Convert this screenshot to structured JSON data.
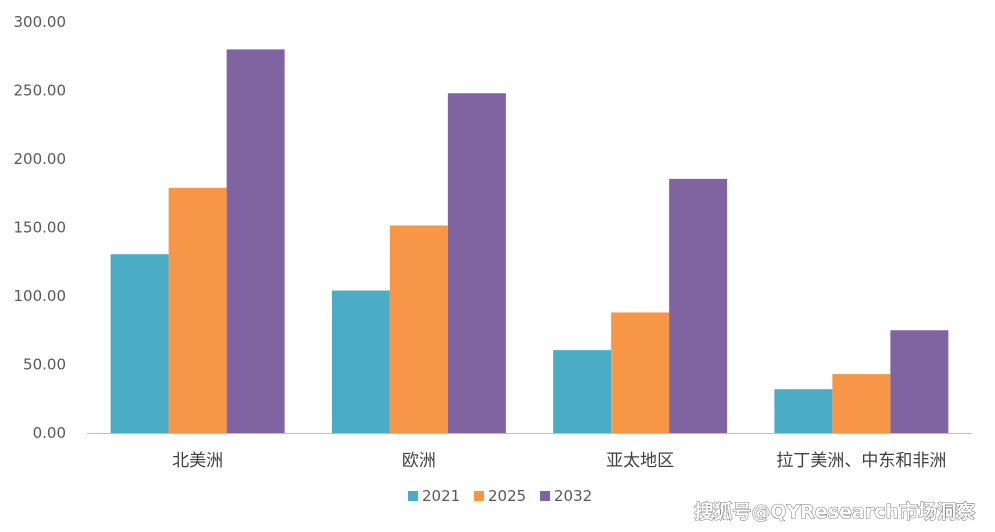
{
  "chart_data": {
    "type": "bar",
    "title": "",
    "xlabel": "",
    "ylabel": "",
    "categories": [
      "北美洲",
      "欧洲",
      "亚太地区",
      "拉丁美洲、中东和非洲"
    ],
    "series": [
      {
        "name": "2021",
        "color": "#4bacc6",
        "values": [
          130.5,
          104.0,
          60.5,
          32.0
        ]
      },
      {
        "name": "2025",
        "color": "#f79646",
        "values": [
          179.0,
          151.5,
          88.0,
          43.0
        ]
      },
      {
        "name": "2032",
        "color": "#8064a2",
        "values": [
          280.0,
          248.0,
          185.5,
          75.0
        ]
      }
    ],
    "ylim": [
      0,
      300
    ],
    "yticks": [
      0,
      50,
      100,
      150,
      200,
      250,
      300
    ],
    "ytick_labels": [
      "0.00",
      "50.00",
      "100.00",
      "150.00",
      "200.00",
      "250.00",
      "300.00"
    ],
    "grid": false,
    "legend_position": "bottom-center"
  },
  "watermark": "搜狐号@QYResearch市场洞察"
}
